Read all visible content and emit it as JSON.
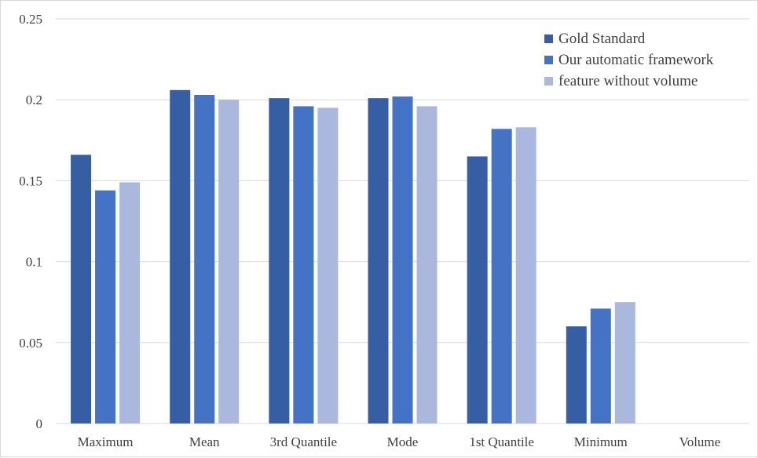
{
  "chart_data": {
    "type": "bar",
    "categories": [
      "Maximum",
      "Mean",
      "3rd Quantile",
      "Mode",
      "1st Quantile",
      "Minimum",
      "Volume"
    ],
    "series": [
      {
        "name": "Gold Standard",
        "color": "#355ea5",
        "values": [
          0.166,
          0.206,
          0.201,
          0.201,
          0.165,
          0.06,
          0
        ]
      },
      {
        "name": "Our automatic framework",
        "color": "#4472c4",
        "values": [
          0.144,
          0.203,
          0.196,
          0.202,
          0.182,
          0.071,
          0
        ]
      },
      {
        "name": "feature without volume",
        "color": "#a9b8dc",
        "values": [
          0.149,
          0.2,
          0.195,
          0.196,
          0.183,
          0.075,
          0
        ]
      }
    ],
    "ylim": [
      0,
      0.25
    ],
    "yticks": [
      0,
      0.05,
      0.1,
      0.15,
      0.2,
      0.25
    ],
    "ytick_labels": [
      "0",
      "0.05",
      "0.1",
      "0.15",
      "0.2",
      "0.25"
    ],
    "grid": true,
    "legend_position": "top-right",
    "title": "",
    "xlabel": "",
    "ylabel": ""
  }
}
